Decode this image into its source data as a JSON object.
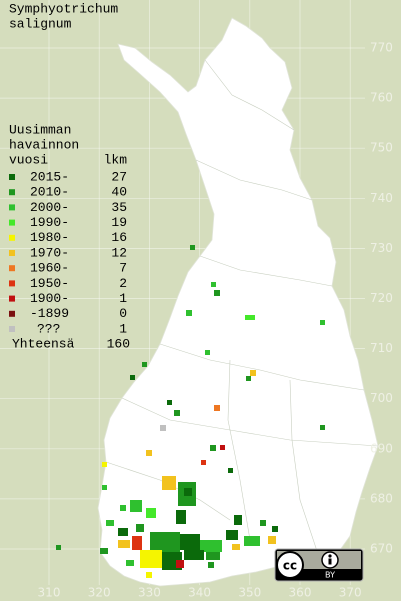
{
  "title": [
    "Symphyotrichum",
    "salignum"
  ],
  "legend": {
    "header": [
      "Uusimman",
      "havainnon"
    ],
    "col_period": "vuosi",
    "col_count": "lkm",
    "rows": [
      {
        "label": "2015-",
        "count": 27,
        "color": "#0b6a0b"
      },
      {
        "label": "2010-",
        "count": 40,
        "color": "#1f961f"
      },
      {
        "label": "2000-",
        "count": 35,
        "color": "#2fc02f"
      },
      {
        "label": "1990-",
        "count": 19,
        "color": "#44e82a"
      },
      {
        "label": "1980-",
        "count": 16,
        "color": "#f5f500"
      },
      {
        "label": "1970-",
        "count": 12,
        "color": "#f2c21e"
      },
      {
        "label": "1960-",
        "count": 7,
        "color": "#ee7722"
      },
      {
        "label": "1950-",
        "count": 2,
        "color": "#dd3311"
      },
      {
        "label": "1900-",
        "count": 1,
        "color": "#c01010"
      },
      {
        "label": "-1899",
        "count": 0,
        "color": "#7a1010"
      },
      {
        "label": "???",
        "count": 1,
        "color": "#c0c0c0"
      }
    ],
    "total_label": "Yhteensä",
    "total": 160
  },
  "x_labels": [
    310,
    320,
    330,
    340,
    350,
    360,
    370
  ],
  "y_labels": [
    670,
    680,
    690,
    700,
    710,
    720,
    730,
    740,
    750,
    760,
    770
  ],
  "license_badge": "BY"
}
